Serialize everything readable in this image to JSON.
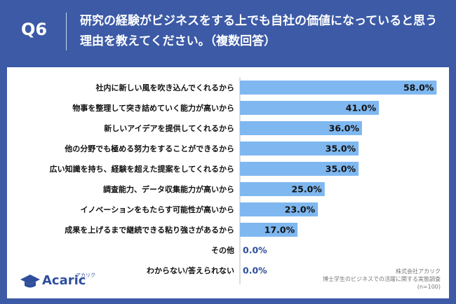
{
  "header": {
    "q_label": "Q6",
    "title": "研究の経験がビジネスをする上でも自社の価値になっていると思う理由を教えてください。（複数回答）"
  },
  "chart_data": {
    "type": "bar",
    "orientation": "horizontal",
    "title": "研究の経験がビジネスをする上でも自社の価値になっていると思う理由を教えてください。（複数回答）",
    "categories": [
      "社内に新しい風を吹き込んでくれるから",
      "物事を整理して突き詰めていく能力が高いから",
      "新しいアイデアを提供してくれるから",
      "他の分野でも極める努力をすることができるから",
      "広い知識を持ち、経験を超えた提案をしてくれるから",
      "調査能力、データ収集能力が高いから",
      "イノベーションをもたらす可能性が高いから",
      "成果を上げるまで継続できる粘り強さがあるから",
      "その他",
      "わからない/答えられない"
    ],
    "values": [
      58.0,
      41.0,
      36.0,
      35.0,
      35.0,
      25.0,
      23.0,
      17.0,
      0.0,
      0.0
    ],
    "value_labels": [
      "58.0%",
      "41.0%",
      "36.0%",
      "35.0%",
      "35.0%",
      "25.0%",
      "23.0%",
      "17.0%",
      "0.0%",
      "0.0%"
    ],
    "xlim": [
      0,
      60
    ],
    "unit": "%",
    "bar_color": "#7fb8f0",
    "grid": false
  },
  "logo": {
    "text": "Acaric",
    "kana": "アカリク"
  },
  "source": {
    "company": "株式会社アカリク",
    "survey": "博士学生のビジネスでの活躍に関する実態調査",
    "n": "(n=100)"
  }
}
